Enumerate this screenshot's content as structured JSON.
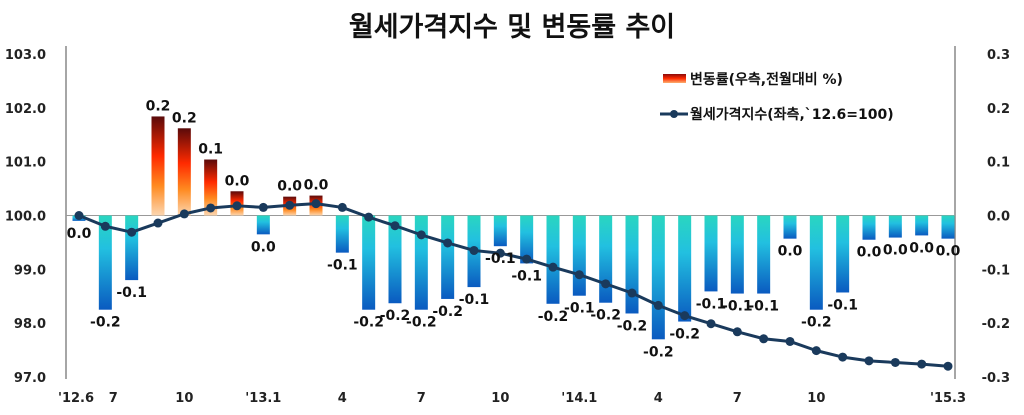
{
  "chart_data": {
    "type": "bar+line",
    "title": "월세가격지수 및 변동률 추이",
    "x_tick_labels": [
      "'12.6",
      "7",
      "",
      "",
      "10",
      "",
      "",
      "'13.1",
      "",
      "",
      "4",
      "",
      "",
      "7",
      "",
      "",
      "10",
      "",
      "",
      "'14.1",
      "",
      "",
      "4",
      "",
      "",
      "7",
      "",
      "",
      "10",
      "",
      "",
      "",
      "",
      "'15.3"
    ],
    "left_axis": {
      "ylim": [
        97.0,
        103.0
      ],
      "ticks": [
        "97.0",
        "98.0",
        "99.0",
        "100.0",
        "101.0",
        "102.0",
        "103.0"
      ]
    },
    "right_axis": {
      "ylim": [
        -0.3,
        0.3
      ],
      "ticks": [
        "-0.3",
        "-0.2",
        "-0.1",
        "0.0",
        "0.1",
        "0.2",
        "0.3"
      ]
    },
    "grid": false,
    "legend_placement": "top-right",
    "series": [
      {
        "name": "변동률(우측,전월대비 %)",
        "type": "bar",
        "axis": "right",
        "values": [
          -0.01,
          -0.175,
          -0.12,
          0.184,
          0.162,
          0.104,
          0.045,
          -0.035,
          0.035,
          0.037,
          -0.069,
          -0.175,
          -0.163,
          -0.175,
          -0.155,
          -0.133,
          -0.057,
          -0.089,
          -0.164,
          -0.149,
          -0.162,
          -0.182,
          -0.23,
          -0.197,
          -0.141,
          -0.145,
          -0.145,
          -0.043,
          -0.175,
          -0.143,
          -0.045,
          -0.041,
          -0.037,
          -0.043
        ],
        "labels": [
          "0.0",
          "-0.2",
          "-0.1",
          "0.2",
          "0.2",
          "0.1",
          "0.0",
          "0.0",
          "0.0",
          "0.0",
          "-0.1",
          "-0.2",
          "-0.2",
          "-0.2",
          "-0.2",
          "-0.1",
          "-0.1",
          "-0.1",
          "-0.2",
          "-0.1",
          "-0.2",
          "-0.2",
          "-0.2",
          "-0.2",
          "-0.1",
          "-0.1",
          "-0.1",
          "0.0",
          "-0.2",
          "-0.1",
          "0.0",
          "0.0",
          "0.0",
          "0.0"
        ],
        "colors": {
          "positive_top": "#5a0a0a",
          "positive_mid": "#ff2a00",
          "positive_bottom": "#fcd6b0",
          "negative_top": "#2ad6c0",
          "negative_bottom": "#0a5ac0"
        }
      },
      {
        "name": "월세가격지수(좌측,`12.6=100)",
        "type": "line",
        "axis": "left",
        "color": "#1a3a5c",
        "values": [
          100.0,
          99.8,
          99.69,
          99.86,
          100.03,
          100.14,
          100.18,
          100.15,
          100.19,
          100.22,
          100.15,
          99.97,
          99.81,
          99.64,
          99.49,
          99.35,
          99.3,
          99.19,
          99.04,
          98.9,
          98.73,
          98.56,
          98.33,
          98.14,
          97.99,
          97.84,
          97.71,
          97.66,
          97.49,
          97.37,
          97.3,
          97.27,
          97.24,
          97.2
        ]
      }
    ]
  }
}
